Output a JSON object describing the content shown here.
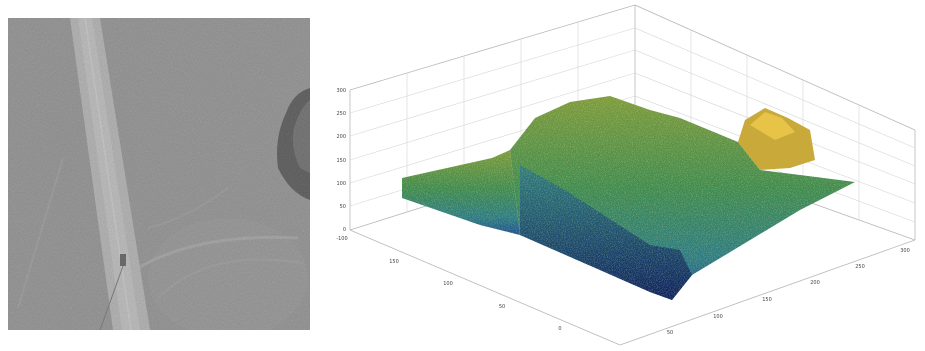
{
  "photo": {
    "kind": "aerial-grayscale-photograph",
    "content": [
      "road",
      "vehicle-tracks",
      "dark-terrain-feature"
    ]
  },
  "surface_plot": {
    "kind": "3d-surface",
    "colormap": [
      "#0b1b5a",
      "#1d4f8f",
      "#2c7a84",
      "#3f8a4f",
      "#7d9a3c",
      "#c9a93a",
      "#e7c447"
    ],
    "grid": true,
    "z_ticks": [
      "300",
      "250",
      "200",
      "150",
      "100",
      "50",
      "0"
    ],
    "left_axis_ticks": [
      "-100",
      "150",
      "100",
      "50",
      "0"
    ],
    "right_axis_ticks": [
      "300",
      "250",
      "200",
      "150",
      "100",
      "50"
    ]
  }
}
